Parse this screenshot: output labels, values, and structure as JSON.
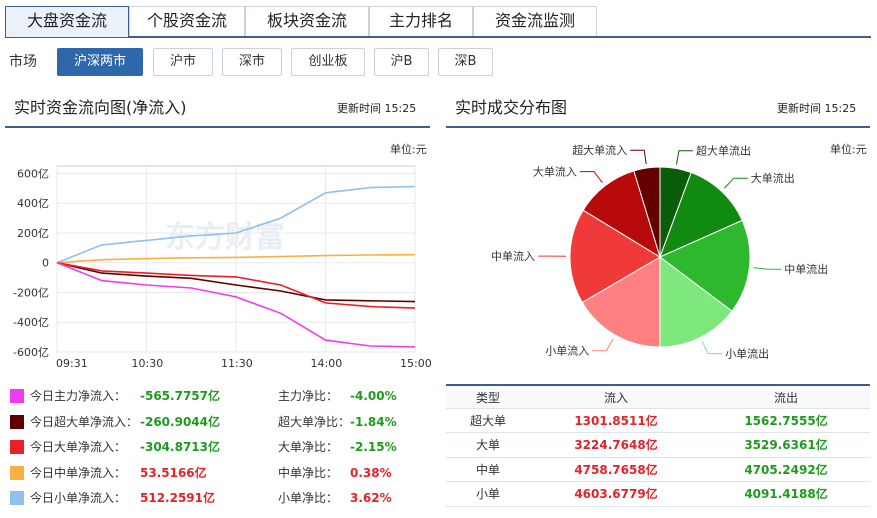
{
  "tabs": [
    {
      "label": "大盘资金流",
      "active": true
    },
    {
      "label": "个股资金流",
      "active": false
    },
    {
      "label": "板块资金流",
      "active": false
    },
    {
      "label": "主力排名",
      "active": false
    },
    {
      "label": "资金流监测",
      "active": false
    }
  ],
  "market": {
    "label": "市场",
    "options": [
      "沪深两市",
      "沪市",
      "深市",
      "创业板",
      "沪B",
      "深B"
    ],
    "selected": "沪深两市"
  },
  "left_panel": {
    "title": "实时资金流向图(净流入)",
    "update_time": "更新时间 15:25",
    "unit": "单位:元",
    "watermark": "东方财富"
  },
  "right_panel": {
    "title": "实时成交分布图",
    "update_time": "更新时间 15:25",
    "unit": "单位:元"
  },
  "legend": [
    {
      "label": "今日主力净流入：",
      "value": "-565.7757亿",
      "ratio_label": "主力净比：",
      "ratio": "-4.00%",
      "color": "#f03cf0",
      "value_class": "neg",
      "ratio_class": "neg"
    },
    {
      "label": "今日超大单净流入：",
      "value": "-260.9044亿",
      "ratio_label": "超大单净比：",
      "ratio": "-1.84%",
      "color": "#5e0000",
      "value_class": "neg",
      "ratio_class": "neg"
    },
    {
      "label": "今日大单净流入：",
      "value": "-304.8713亿",
      "ratio_label": "大单净比：",
      "ratio": "-2.15%",
      "color": "#e8202a",
      "value_class": "neg",
      "ratio_class": "neg"
    },
    {
      "label": "今日中单净流入：",
      "value": "53.5166亿",
      "ratio_label": "中单净比：",
      "ratio": "0.38%",
      "color": "#f8b040",
      "value_class": "pos",
      "ratio_class": "pos"
    },
    {
      "label": "今日小单净流入：",
      "value": "512.2591亿",
      "ratio_label": "小单净比：",
      "ratio": "3.62%",
      "color": "#90c0ec",
      "value_class": "pos",
      "ratio_class": "pos"
    }
  ],
  "table": {
    "headers": [
      "类型",
      "流入",
      "流出"
    ],
    "rows": [
      {
        "type": "超大单",
        "inflow": "1301.8511亿",
        "outflow": "1562.7555亿"
      },
      {
        "type": "大单",
        "inflow": "3224.7648亿",
        "outflow": "3529.6361亿"
      },
      {
        "type": "中单",
        "inflow": "4758.7658亿",
        "outflow": "4705.2492亿"
      },
      {
        "type": "小单",
        "inflow": "4603.6779亿",
        "outflow": "4091.4188亿"
      }
    ]
  },
  "chart_data": [
    {
      "type": "line",
      "title": "",
      "x_ticks": [
        "09:31",
        "10:30",
        "11:30",
        "14:00",
        "15:00"
      ],
      "y_ticks": [
        "600亿",
        "400亿",
        "200亿",
        "0",
        "-200亿",
        "-400亿",
        "-600亿"
      ],
      "ylim": [
        -600,
        650
      ],
      "grid": true,
      "x": [
        0,
        30,
        60,
        90,
        120,
        150,
        180,
        210,
        240
      ],
      "series": [
        {
          "name": "今日主力净流入",
          "color": "#f03cf0",
          "values": [
            0,
            -120,
            -150,
            -170,
            -230,
            -340,
            -520,
            -560,
            -566
          ]
        },
        {
          "name": "今日超大单净流入",
          "color": "#5e0000",
          "values": [
            0,
            -70,
            -90,
            -105,
            -150,
            -190,
            -250,
            -256,
            -261
          ]
        },
        {
          "name": "今日大单净流入",
          "color": "#e8202a",
          "values": [
            0,
            -55,
            -70,
            -85,
            -95,
            -150,
            -270,
            -295,
            -305
          ]
        },
        {
          "name": "今日中单净流入",
          "color": "#f8b040",
          "values": [
            0,
            20,
            28,
            33,
            36,
            42,
            48,
            52,
            54
          ]
        },
        {
          "name": "今日小单净流入",
          "color": "#90c0ec",
          "values": [
            0,
            120,
            150,
            180,
            200,
            300,
            470,
            505,
            512
          ]
        }
      ]
    },
    {
      "type": "pie",
      "title": "",
      "labels": [
        "超大单流出",
        "大单流出",
        "中单流出",
        "小单流出",
        "小单流入",
        "中单流入",
        "大单流入",
        "超大单流入"
      ],
      "values": [
        1562.7555,
        3529.6361,
        4705.2492,
        4091.4188,
        4603.6779,
        4758.7658,
        3224.7648,
        1301.8511
      ],
      "colors": [
        "#0a5c0a",
        "#108a10",
        "#2eb82e",
        "#7ee87e",
        "#ff8080",
        "#f03a3a",
        "#b80a0a",
        "#640000"
      ]
    }
  ]
}
